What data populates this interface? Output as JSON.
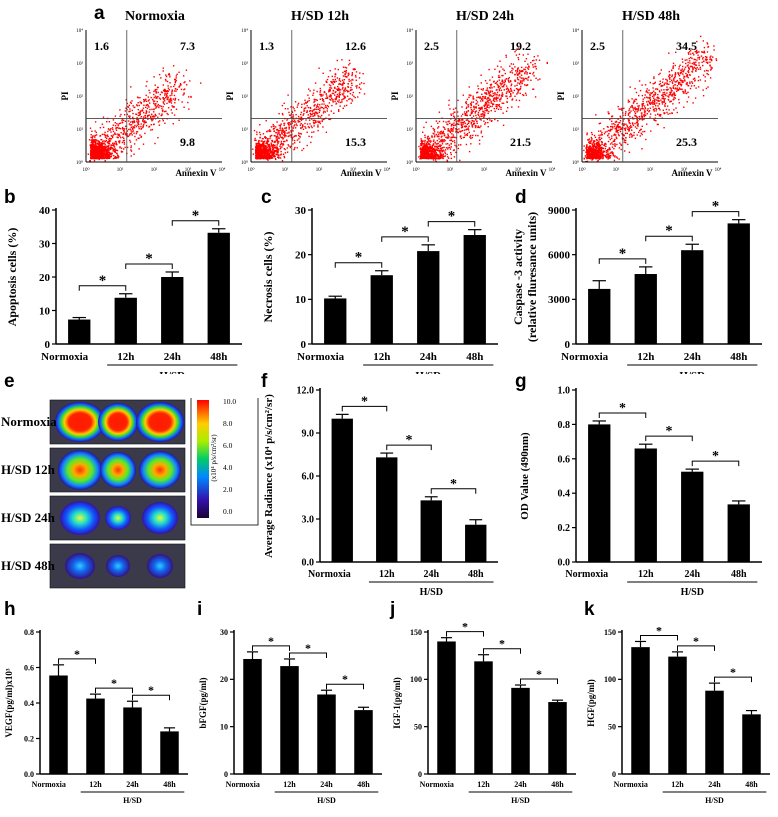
{
  "panel_labels": [
    "a",
    "b",
    "c",
    "d",
    "e",
    "f",
    "g",
    "h",
    "i",
    "j",
    "k"
  ],
  "flow": {
    "xlabel": "Annexin V",
    "ylabel": "PI",
    "tick_labels": [
      "10⁰",
      "10¹",
      "10²",
      "10³",
      "10⁴"
    ],
    "point_color": "#ff0000",
    "plots": [
      {
        "title": "Normoxia",
        "ul": "1.6",
        "ur": "7.3",
        "lr": "9.8"
      },
      {
        "title": "H/SD 12h",
        "ul": "1.3",
        "ur": "12.6",
        "lr": "15.3"
      },
      {
        "title": "H/SD 24h",
        "ul": "2.5",
        "ur": "19.2",
        "lr": "21.5"
      },
      {
        "title": "H/SD 48h",
        "ul": "2.5",
        "ur": "34.5",
        "lr": "25.3"
      }
    ]
  },
  "heatmap": {
    "rows": [
      "Normoxia",
      "H/SD 12h",
      "H/SD 24h",
      "H/SD 48h"
    ],
    "colorbar_ticks": [
      "10.0",
      "8.0",
      "6.0",
      "4.0",
      "2.0",
      "0.0"
    ],
    "colorbar_unit": "(x10⁴ p/s/cm²/sr)"
  },
  "chart_data": [
    {
      "id": "b",
      "type": "bar",
      "categories": [
        "Normoxia",
        "12h",
        "24h",
        "48h"
      ],
      "group_label": "H/SD",
      "ylabel": "Apoptosis cells (%)",
      "ylim": [
        0,
        40
      ],
      "yticks": [
        "0",
        "10",
        "20",
        "30",
        "40"
      ],
      "values": [
        7.3,
        13.8,
        20.0,
        33.2
      ],
      "errors": [
        0.6,
        1.2,
        1.5,
        1.2
      ],
      "significance": "*"
    },
    {
      "id": "c",
      "type": "bar",
      "categories": [
        "Normoxia",
        "12h",
        "24h",
        "48h"
      ],
      "group_label": "H/SD",
      "ylabel": "Necrosis cells (%)",
      "ylim": [
        0,
        30
      ],
      "yticks": [
        "0",
        "10",
        "20",
        "30"
      ],
      "values": [
        10.2,
        15.4,
        20.8,
        24.4
      ],
      "errors": [
        0.5,
        1.0,
        1.4,
        1.2
      ],
      "significance": "*"
    },
    {
      "id": "d",
      "type": "bar",
      "categories": [
        "Normoxia",
        "12h",
        "24h",
        "48h"
      ],
      "group_label": "H/SD",
      "ylabel": "Caspase -3 activity",
      "ylabel2": "(relative fluresance units)",
      "ylim": [
        0,
        9000
      ],
      "yticks": [
        "0",
        "3000",
        "6000",
        "9000"
      ],
      "values": [
        3700,
        4700,
        6300,
        8100
      ],
      "errors": [
        550,
        480,
        400,
        250
      ],
      "significance": "*"
    },
    {
      "id": "f",
      "type": "bar",
      "categories": [
        "Normoxia",
        "12h",
        "24h",
        "48h"
      ],
      "group_label": "H/SD",
      "ylabel": "Average Radiance  (x10⁴ p/s/cm²/sr)",
      "ylim": [
        0,
        12
      ],
      "yticks": [
        "0.0",
        "3.0",
        "6.0",
        "9.0",
        "12.0"
      ],
      "values": [
        10.0,
        7.3,
        4.3,
        2.6
      ],
      "errors": [
        0.3,
        0.3,
        0.25,
        0.35
      ],
      "significance": "*"
    },
    {
      "id": "g",
      "type": "bar",
      "categories": [
        "Normoxia",
        "12h",
        "24h",
        "48h"
      ],
      "group_label": "H/SD",
      "ylabel": "OD Value  (490nm)",
      "ylim": [
        0,
        1.0
      ],
      "yticks": [
        "0.0",
        "0.2",
        "0.4",
        "0.6",
        "0.8",
        "1.0"
      ],
      "values": [
        0.8,
        0.66,
        0.525,
        0.335
      ],
      "errors": [
        0.02,
        0.025,
        0.015,
        0.02
      ],
      "significance": "*"
    },
    {
      "id": "h",
      "type": "bar",
      "categories": [
        "Normoxia",
        "12h",
        "24h",
        "48h"
      ],
      "group_label": "H/SD",
      "ylabel": "VEGF(pg/ml)x10³",
      "ylim": [
        0,
        0.8
      ],
      "yticks": [
        "0.0",
        "0.2",
        "0.4",
        "0.6",
        "0.8"
      ],
      "values": [
        0.555,
        0.425,
        0.375,
        0.24
      ],
      "errors": [
        0.06,
        0.025,
        0.035,
        0.02
      ],
      "significance": "*"
    },
    {
      "id": "i",
      "type": "bar",
      "categories": [
        "Normoxia",
        "12h",
        "24h",
        "48h"
      ],
      "group_label": "H/SD",
      "ylabel": "bFGF(pg/ml)",
      "ylim": [
        0,
        30
      ],
      "yticks": [
        "0",
        "10",
        "20",
        "30"
      ],
      "values": [
        24.3,
        22.8,
        16.8,
        13.5
      ],
      "errors": [
        1.5,
        1.5,
        0.9,
        0.6
      ],
      "significance": "*"
    },
    {
      "id": "j",
      "type": "bar",
      "categories": [
        "Normoxia",
        "12h",
        "24h",
        "48h"
      ],
      "group_label": "H/SD",
      "ylabel": "IGF-1(pg/ml)",
      "ylim": [
        0,
        150
      ],
      "yticks": [
        "0",
        "50",
        "100",
        "150"
      ],
      "values": [
        140,
        119,
        91,
        76
      ],
      "errors": [
        4,
        7,
        3,
        2
      ],
      "significance": "*"
    },
    {
      "id": "k",
      "type": "bar",
      "categories": [
        "Normoxia",
        "12h",
        "24h",
        "48h"
      ],
      "group_label": "H/SD",
      "ylabel": "HGF(pg/ml)",
      "ylim": [
        0,
        150
      ],
      "yticks": [
        "0",
        "50",
        "100",
        "150"
      ],
      "values": [
        134,
        124,
        88,
        63
      ],
      "errors": [
        6,
        5,
        8,
        4
      ],
      "significance": "*"
    }
  ]
}
